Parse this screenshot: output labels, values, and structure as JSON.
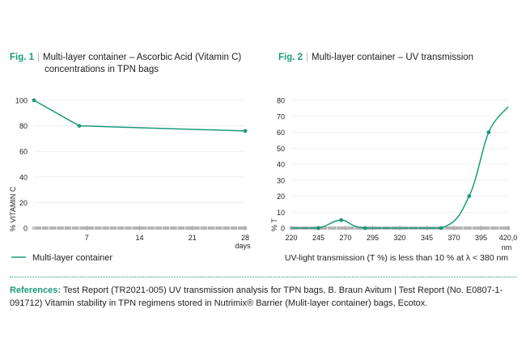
{
  "colors": {
    "accent": "#1a9a7a",
    "axis": "#b5b5b5",
    "text": "#222222"
  },
  "figures": {
    "fig1": {
      "num": "Fig. 1",
      "sep": "|",
      "title_line1": "Multi-layer container – Ascorbic Acid (Vitamin C)",
      "title_line2": "concentrations in TPN bags"
    },
    "fig2": {
      "num": "Fig. 2",
      "sep": "|",
      "title_line1": "Multi-layer container – UV transmission"
    }
  },
  "chart_data": [
    {
      "type": "line",
      "title": "Multi-layer container – Ascorbic Acid (Vitamin C) concentrations in TPN bags",
      "xlabel": "days",
      "ylabel": "% VITAMIN C",
      "x_ticks": [
        "7",
        "14",
        "21",
        "28"
      ],
      "y_ticks": [
        "0",
        "20",
        "40",
        "60",
        "80",
        "100"
      ],
      "xlim": [
        0,
        28
      ],
      "ylim": [
        0,
        100
      ],
      "series": [
        {
          "name": "Multi-layer container",
          "x": [
            0,
            6,
            28
          ],
          "y": [
            100,
            80,
            76
          ]
        }
      ],
      "legend": {
        "label": "Multi-layer container",
        "placement": "bottom-left"
      }
    },
    {
      "type": "line",
      "title": "Multi-layer container – UV transmission",
      "xlabel": "nm",
      "ylabel": "% T",
      "x_ticks": [
        "220",
        "245",
        "270",
        "295",
        "320",
        "345",
        "370",
        "395",
        "420,0"
      ],
      "y_ticks": [
        "0",
        "10",
        "20",
        "30",
        "40",
        "50",
        "60",
        "70",
        "80"
      ],
      "xlim": [
        220,
        420
      ],
      "ylim": [
        0,
        80
      ],
      "series": [
        {
          "x": [
            220,
            245,
            266,
            288,
            358,
            384,
            402,
            420
          ],
          "y": [
            0,
            0,
            5,
            0,
            0,
            20,
            60,
            76
          ]
        }
      ],
      "caption": "UV-light transmission (T %) is less than 10 % at λ < 380 nm"
    }
  ],
  "references": {
    "label": "References:",
    "text": "Test Report (TR2021-005) UV transmission analysis for TPN bags, B. Braun Avitum | Test Report (No. E0807-1-091712) Vitamin stability in TPN regimens stored in Nutrimix® Barrier (Mulit-layer container) bags, Ecotox."
  }
}
